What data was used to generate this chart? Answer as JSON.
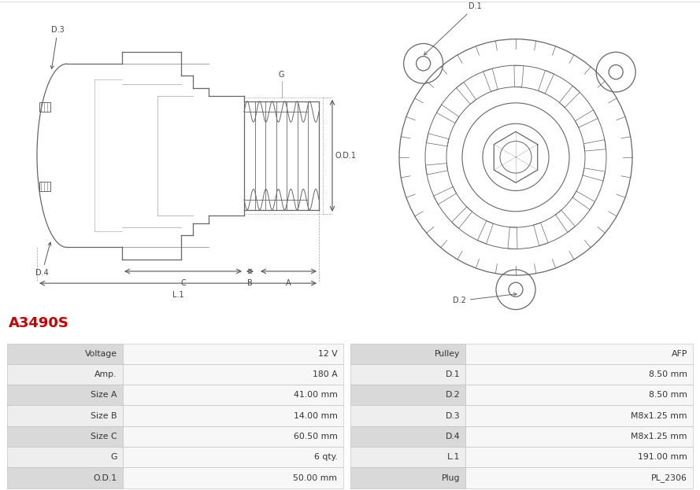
{
  "title": "A3490S",
  "title_color": "#cc0000",
  "bg_color": "#ffffff",
  "table": {
    "left_labels": [
      "Voltage",
      "Amp.",
      "Size A",
      "Size B",
      "Size C",
      "G",
      "O.D.1"
    ],
    "left_values": [
      "12 V",
      "180 A",
      "41.00 mm",
      "14.00 mm",
      "60.50 mm",
      "6 qty.",
      "50.00 mm"
    ],
    "right_labels": [
      "Pulley",
      "D.1",
      "D.2",
      "D.3",
      "D.4",
      "L.1",
      "Plug"
    ],
    "right_values": [
      "AFP",
      "8.50 mm",
      "8.50 mm",
      "M8x1.25 mm",
      "M8x1.25 mm",
      "191.00 mm",
      "PL_2306"
    ]
  },
  "row_colors": [
    "#d9d9d9",
    "#eeeeee"
  ],
  "line_color": "#666666",
  "dim_color": "#444444"
}
